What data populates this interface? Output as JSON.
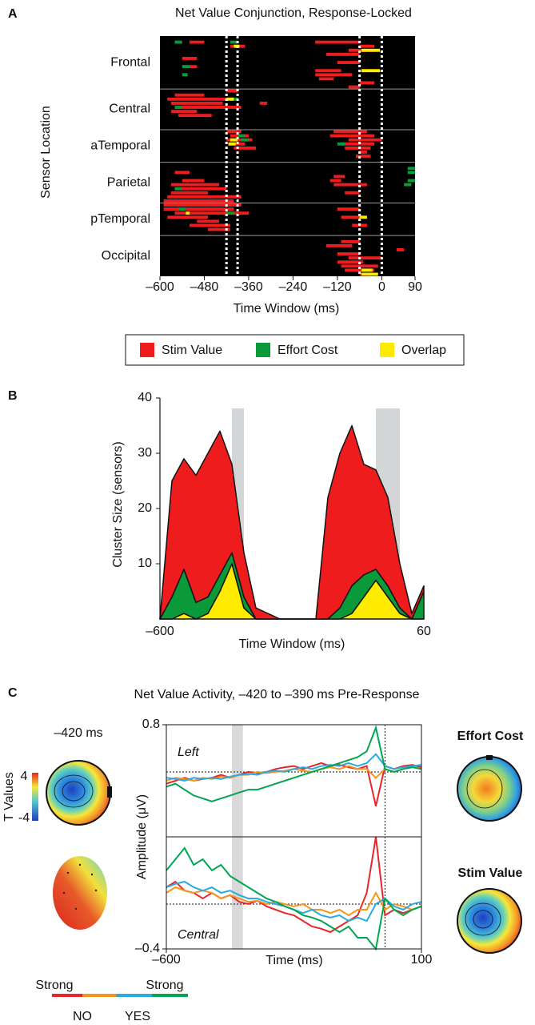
{
  "chart_data": [
    {
      "panel": "A",
      "type": "raster",
      "title": "Net Value Conjunction, Response-Locked",
      "ylabel": "Sensor Location",
      "xlabel": "Time Window (ms)",
      "categories": [
        "Frontal",
        "Central",
        "aTemporal",
        "Parietal",
        "pTemporal",
        "Occipital"
      ],
      "sensors_per_group": [
        13,
        10,
        8,
        10,
        8,
        10
      ],
      "xlim": [
        -600,
        90
      ],
      "xticks": [
        {
          "value": -600,
          "label": "–600"
        },
        {
          "value": -480,
          "label": "–480"
        },
        {
          "value": -360,
          "label": "–360"
        },
        {
          "value": -240,
          "label": "–240"
        },
        {
          "value": -120,
          "label": "–120"
        },
        0,
        90
      ],
      "windows": [
        [
          -420,
          -390
        ],
        [
          -60,
          0
        ]
      ],
      "series": [
        {
          "name": "Stim Value",
          "color": "#ee1c1c",
          "segments": [
            [
              1,
              -520,
              -480
            ],
            [
              2,
              -410,
              -370
            ],
            [
              5,
              -540,
              -500
            ],
            [
              7,
              -520,
              -500
            ],
            [
              3,
              -90,
              -20
            ],
            [
              1,
              -180,
              -60
            ],
            [
              2,
              -60,
              -20
            ],
            [
              4,
              -150,
              -60
            ],
            [
              6,
              -120,
              -60
            ],
            [
              8,
              -180,
              -110
            ],
            [
              9,
              -180,
              -80
            ],
            [
              10,
              -170,
              -130
            ],
            [
              11,
              -60,
              -20
            ],
            [
              12,
              -90,
              -60
            ],
            [
              14,
              -560,
              -480
            ],
            [
              15,
              -580,
              -420
            ],
            [
              16,
              -570,
              -430
            ],
            [
              17,
              -560,
              -380
            ],
            [
              18,
              -570,
              -500
            ],
            [
              19,
              -550,
              -460
            ],
            [
              13,
              -420,
              -390
            ],
            [
              16,
              -330,
              -310
            ],
            [
              23,
              -420,
              -380
            ],
            [
              24,
              -410,
              -360
            ],
            [
              25,
              -420,
              -350
            ],
            [
              26,
              -410,
              -370
            ],
            [
              27,
              -400,
              -340
            ],
            [
              23,
              -130,
              -40
            ],
            [
              24,
              -140,
              -20
            ],
            [
              25,
              -90,
              0
            ],
            [
              26,
              -110,
              -20
            ],
            [
              27,
              -100,
              -30
            ],
            [
              28,
              -60,
              -40
            ],
            [
              29,
              -70,
              -30
            ],
            [
              33,
              -560,
              -520
            ],
            [
              35,
              -540,
              -480
            ],
            [
              36,
              -570,
              -440
            ],
            [
              37,
              -560,
              -420
            ],
            [
              38,
              -570,
              -470
            ],
            [
              39,
              -580,
              -380
            ],
            [
              40,
              -590,
              -400
            ],
            [
              34,
              -130,
              -100
            ],
            [
              35,
              -140,
              -110
            ],
            [
              36,
              -130,
              -40
            ],
            [
              38,
              -100,
              -60
            ],
            [
              41,
              -590,
              -380
            ],
            [
              42,
              -590,
              -400
            ],
            [
              43,
              -560,
              -360
            ],
            [
              44,
              -580,
              -470
            ],
            [
              45,
              -500,
              -440
            ],
            [
              46,
              -520,
              -410
            ],
            [
              47,
              -470,
              -410
            ],
            [
              42,
              -120,
              -60
            ],
            [
              44,
              -110,
              -60
            ],
            [
              46,
              -80,
              -40
            ],
            [
              50,
              -110,
              -60
            ],
            [
              51,
              -150,
              -80
            ],
            [
              53,
              -120,
              -60
            ],
            [
              54,
              -90,
              0
            ],
            [
              55,
              -120,
              -50
            ],
            [
              56,
              -110,
              -10
            ],
            [
              57,
              -100,
              -20
            ],
            [
              58,
              -60,
              -30
            ],
            [
              52,
              40,
              60
            ]
          ]
        },
        {
          "name": "Effort Cost",
          "color": "#0a9a3a",
          "segments": [
            [
              1,
              -560,
              -540
            ],
            [
              1,
              -410,
              -390
            ],
            [
              7,
              -540,
              -520
            ],
            [
              9,
              -540,
              -525
            ],
            [
              15,
              -410,
              -390
            ],
            [
              17,
              -560,
              -540
            ],
            [
              24,
              -390,
              -370
            ],
            [
              25,
              -380,
              -360
            ],
            [
              26,
              -120,
              -100
            ],
            [
              37,
              -560,
              -540
            ],
            [
              32,
              70,
              90
            ],
            [
              33,
              70,
              90
            ],
            [
              35,
              70,
              90
            ],
            [
              36,
              60,
              80
            ],
            [
              42,
              -550,
              -530
            ],
            [
              43,
              -420,
              -400
            ]
          ]
        },
        {
          "name": "Overlap",
          "color": "#ffeb00",
          "segments": [
            [
              2,
              -400,
              -385
            ],
            [
              3,
              -55,
              -5
            ],
            [
              8,
              -55,
              -5
            ],
            [
              15,
              -420,
              -400
            ],
            [
              25,
              -410,
              -390
            ],
            [
              26,
              -415,
              -395
            ],
            [
              44,
              -60,
              -40
            ],
            [
              43,
              -530,
              -520
            ],
            [
              57,
              -55,
              -25
            ],
            [
              58,
              -55,
              -10
            ]
          ]
        }
      ]
    },
    {
      "panel": "B",
      "type": "stacked_area",
      "ylabel": "Cluster Size (sensors)",
      "xlabel": "Time Window (ms)",
      "x": [
        -600,
        -570,
        -540,
        -510,
        -480,
        -450,
        -420,
        -390,
        -360,
        -330,
        -300,
        -270,
        -240,
        -210,
        -180,
        -150,
        -120,
        -90,
        -60,
        -30,
        0,
        30,
        60
      ],
      "xlim": [
        -600,
        60
      ],
      "ylim": [
        0,
        40
      ],
      "xticks": [
        {
          "value": -600,
          "label": "–600"
        },
        60
      ],
      "yticks": [
        10,
        20,
        30,
        40
      ],
      "windows": [
        [
          -420,
          -390
        ],
        [
          -60,
          0
        ]
      ],
      "series": [
        {
          "color": "#ffeb00",
          "values": [
            0,
            0,
            1,
            0,
            1,
            5,
            10,
            2,
            0,
            0,
            0,
            0,
            0,
            0,
            0,
            0,
            1,
            4,
            7,
            4,
            1,
            0,
            0
          ]
        },
        {
          "color": "#0a9a3a",
          "values": [
            0,
            4,
            8,
            3,
            3,
            3,
            2,
            2,
            0,
            0,
            0,
            0,
            0,
            0,
            0,
            2,
            5,
            4,
            2,
            2,
            1,
            0,
            5
          ]
        },
        {
          "color": "#ee1c1c",
          "values": [
            0,
            21,
            20,
            23,
            26,
            26,
            16,
            8,
            2,
            1,
            0,
            0,
            0,
            0,
            22,
            28,
            29,
            20,
            18,
            16,
            8,
            1,
            1
          ]
        }
      ]
    },
    {
      "panel": "C",
      "type": "line",
      "title": "Net Value Activity, –420 to –390 ms Pre-Response",
      "ylabel": "Amplitude (μV)",
      "xlabel": "Time (ms)",
      "x": [
        -600,
        -575,
        -550,
        -525,
        -500,
        -475,
        -450,
        -425,
        -400,
        -375,
        -350,
        -325,
        -300,
        -275,
        -250,
        -225,
        -200,
        -175,
        -150,
        -125,
        -100,
        -75,
        -50,
        -25,
        0,
        25,
        50,
        75,
        100
      ],
      "xlim": [
        -600,
        100
      ],
      "xticks": [
        {
          "value": -600,
          "label": "–600"
        },
        100
      ],
      "window": [
        -420,
        -390
      ],
      "panels": [
        {
          "label": "Left",
          "ylim": [
            -1.1,
            0.8
          ],
          "yticks": [
            0.8
          ],
          "series": [
            {
              "color": "#e8262a",
              "values": [
                -0.2,
                -0.15,
                -0.1,
                -0.15,
                -0.12,
                -0.1,
                -0.05,
                -0.1,
                -0.05,
                0,
                -0.02,
                0,
                0.05,
                0.08,
                0.1,
                0.05,
                0.1,
                0.15,
                0.1,
                0.12,
                0.08,
                0.05,
                0.1,
                -0.58,
                0.1,
                0.05,
                0.1,
                0.12,
                0.08
              ]
            },
            {
              "color": "#f7941d",
              "values": [
                -0.15,
                -0.1,
                -0.12,
                -0.15,
                -0.1,
                -0.12,
                -0.08,
                -0.1,
                -0.05,
                -0.05,
                0,
                -0.02,
                0,
                0.02,
                0.05,
                0.02,
                0,
                0.05,
                0.08,
                0.05,
                0.1,
                0.05,
                0.05,
                -0.1,
                0.05,
                0,
                0.05,
                0.1,
                0.05
              ]
            },
            {
              "color": "#29abe2",
              "values": [
                -0.1,
                -0.12,
                -0.15,
                -0.1,
                -0.12,
                -0.1,
                -0.12,
                -0.08,
                -0.05,
                -0.03,
                -0.05,
                0,
                0.02,
                0,
                0.05,
                0.08,
                0.05,
                0.1,
                0.12,
                0.1,
                0.15,
                0.1,
                0.15,
                0.3,
                0.1,
                0.05,
                0.08,
                0.1,
                0.12
              ]
            },
            {
              "color": "#00a651",
              "values": [
                -0.25,
                -0.2,
                -0.3,
                -0.4,
                -0.45,
                -0.5,
                -0.45,
                -0.4,
                -0.35,
                -0.3,
                -0.3,
                -0.25,
                -0.2,
                -0.15,
                -0.1,
                -0.05,
                0,
                0.05,
                0.1,
                0.15,
                0.2,
                0.25,
                0.35,
                0.75,
                0.05,
                0,
                0.05,
                0.08,
                0.05
              ]
            }
          ]
        },
        {
          "label": "Central",
          "ylim": [
            -0.4,
            0.6
          ],
          "yticks": [
            {
              "value": -0.4,
              "label": "–0.4"
            }
          ],
          "series": [
            {
              "color": "#e8262a",
              "values": [
                0.15,
                0.2,
                0.12,
                0.1,
                0.05,
                0.1,
                0.05,
                0.08,
                0.02,
                0,
                0.03,
                -0.02,
                -0.05,
                -0.08,
                -0.1,
                -0.15,
                -0.2,
                -0.22,
                -0.25,
                -0.2,
                -0.15,
                -0.1,
                0.1,
                0.6,
                -0.1,
                -0.05,
                -0.08,
                -0.05,
                -0.02
              ]
            },
            {
              "color": "#f7941d",
              "values": [
                0.1,
                0.15,
                0.12,
                0.1,
                0.12,
                0.1,
                0.05,
                0.08,
                0.05,
                0.02,
                0.03,
                0,
                0.02,
                0,
                -0.02,
                0,
                -0.05,
                -0.05,
                -0.08,
                -0.05,
                -0.1,
                -0.05,
                -0.05,
                0.1,
                -0.05,
                0,
                -0.02,
                -0.05,
                -0.02
              ]
            },
            {
              "color": "#29abe2",
              "values": [
                0.15,
                0.18,
                0.2,
                0.15,
                0.12,
                0.15,
                0.1,
                0.12,
                0.08,
                0.05,
                0.05,
                0.02,
                0,
                -0.02,
                -0.05,
                -0.08,
                -0.05,
                -0.1,
                -0.12,
                -0.1,
                -0.15,
                -0.12,
                -0.15,
                0,
                0.05,
                -0.02,
                -0.05,
                0,
                0.02
              ]
            },
            {
              "color": "#00a651",
              "values": [
                0.3,
                0.4,
                0.5,
                0.35,
                0.4,
                0.3,
                0.35,
                0.25,
                0.2,
                0.15,
                0.1,
                0.05,
                0.02,
                -0.02,
                -0.05,
                -0.1,
                -0.12,
                -0.15,
                -0.2,
                -0.25,
                -0.2,
                -0.3,
                -0.3,
                -0.4,
                0.05,
                -0.05,
                -0.1,
                -0.05,
                -0.02
              ]
            }
          ]
        }
      ],
      "legend": {
        "ends": [
          "Strong",
          "Strong"
        ],
        "sides": [
          "NO",
          "YES"
        ]
      },
      "topomaps": {
        "time_label": "–420 ms",
        "colorbar_label": "T Values",
        "colorbar_ticks": [
          4,
          -4
        ],
        "titles": [
          "Effort Cost",
          "Stim Value"
        ]
      }
    }
  ]
}
